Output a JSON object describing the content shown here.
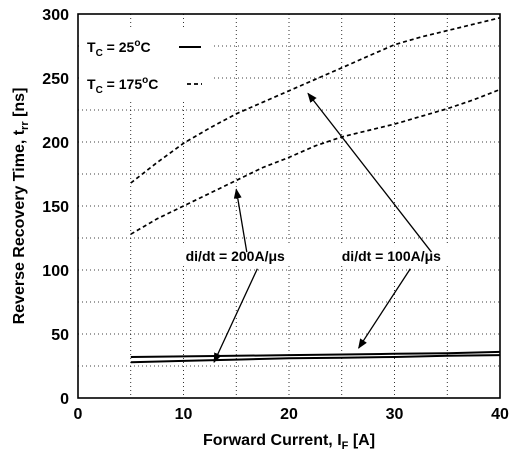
{
  "chart_data": {
    "type": "line",
    "title": "",
    "xlabel": {
      "main": "Forward Current, I",
      "sub": "F",
      "suffix": " [A]"
    },
    "ylabel": {
      "main": "Reverse Recovery Time, t",
      "sub": "rr",
      "suffix": " [ns]"
    },
    "xlim": [
      0,
      40
    ],
    "ylim": [
      0,
      300
    ],
    "xticks": [
      "0",
      "10",
      "20",
      "30",
      "40"
    ],
    "yticks": [
      "0",
      "50",
      "100",
      "150",
      "200",
      "250",
      "300"
    ],
    "grid": true,
    "legend": {
      "placement": "top-left",
      "entries": [
        {
          "pre": "T",
          "sub": "C",
          "text": " = 25",
          "sup": "o",
          "post": "C",
          "style": "solid"
        },
        {
          "pre": "T",
          "sub": "C",
          "text": " = 175",
          "sup": "o",
          "post": "C",
          "style": "dashed"
        }
      ]
    },
    "series": [
      {
        "style": "solid",
        "x": [
          5,
          10,
          15,
          20,
          25,
          30,
          35,
          40
        ],
        "y": [
          32,
          32.5,
          33,
          33.5,
          34,
          34.5,
          35,
          36
        ]
      },
      {
        "style": "solid",
        "x": [
          5,
          10,
          15,
          20,
          25,
          30,
          35,
          40
        ],
        "y": [
          28,
          29,
          30,
          31,
          31.5,
          32,
          33,
          33.5
        ]
      },
      {
        "style": "dashed",
        "x": [
          5,
          7.5,
          10,
          12.5,
          15,
          17.5,
          20,
          22.5,
          25,
          27.5,
          30,
          32.5,
          35,
          37.5,
          40
        ],
        "y": [
          168,
          184,
          199,
          211,
          222,
          231,
          240,
          249,
          258,
          267,
          276,
          282,
          287,
          292,
          297
        ]
      },
      {
        "style": "dashed",
        "x": [
          5,
          7.5,
          10,
          12.5,
          15,
          17.5,
          20,
          22.5,
          25,
          27.5,
          30,
          32.5,
          35,
          37.5,
          40
        ],
        "y": [
          128,
          140,
          150,
          160,
          170,
          180,
          188,
          197,
          204,
          209,
          214,
          220,
          226,
          233,
          241
        ]
      }
    ],
    "annotations": [
      {
        "text": "di/dt = 200A/μs",
        "x": 10.2,
        "y": 107,
        "arrows": [
          {
            "from": [
              17,
              101
            ],
            "to": [
              12.9,
              28
            ]
          },
          {
            "from": [
              16,
              114
            ],
            "to": [
              15,
              163
            ]
          }
        ]
      },
      {
        "text": "di/dt = 100A/μs",
        "x": 25,
        "y": 107,
        "arrows": [
          {
            "from": [
              31.5,
              101
            ],
            "to": [
              26.6,
              39
            ]
          },
          {
            "from": [
              33.5,
              114
            ],
            "to": [
              21.8,
              238
            ]
          }
        ]
      }
    ]
  }
}
